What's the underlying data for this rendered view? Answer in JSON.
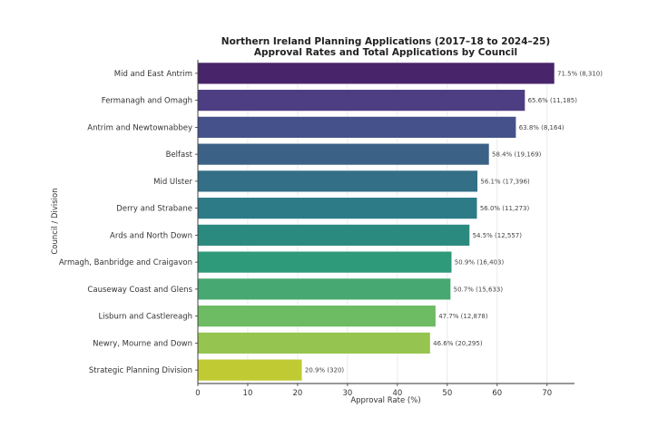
{
  "chart_data": {
    "type": "bar",
    "orientation": "horizontal",
    "title": "Northern Ireland Planning Applications (2017–18 to 2024–25)",
    "subtitle": "Approval Rates and Total Applications by Council",
    "xlabel": "Approval Rate (%)",
    "ylabel": "Council / Division",
    "xlim": [
      0,
      75.5
    ],
    "xticks": [
      0,
      10,
      20,
      30,
      40,
      50,
      60,
      70
    ],
    "grid": "vertical",
    "categories": [
      "Mid and East Antrim",
      "Fermanagh and Omagh",
      "Antrim and Newtownabbey",
      "Belfast",
      "Mid Ulster",
      "Derry and Strabane",
      "Ards and North Down",
      "Armagh, Banbridge and Craigavon",
      "Causeway Coast and Glens",
      "Lisburn and Castlereagh",
      "Newry, Mourne and Down",
      "Strategic Planning Division"
    ],
    "values": [
      71.5,
      65.6,
      63.8,
      58.4,
      56.1,
      56.0,
      54.5,
      50.9,
      50.7,
      47.7,
      46.6,
      20.9
    ],
    "applications": [
      8310,
      11185,
      8164,
      19169,
      17396,
      11273,
      12557,
      16403,
      15633,
      12878,
      20295,
      320
    ],
    "data_labels": [
      "71.5% (8,310)",
      "65.6% (11,185)",
      "63.8% (8,164)",
      "58.4% (19,169)",
      "56.1% (17,396)",
      "56.0% (11,273)",
      "54.5% (12,557)",
      "50.9% (16,403)",
      "50.7% (15,633)",
      "47.7% (12,878)",
      "46.6% (20,295)",
      "20.9% (320)"
    ],
    "colors": [
      "#48246a",
      "#4d3d82",
      "#45518a",
      "#3c6186",
      "#336f87",
      "#2e7b88",
      "#2b8a80",
      "#2f9a79",
      "#47a971",
      "#6dbb62",
      "#95c550",
      "#c0cb33"
    ]
  }
}
